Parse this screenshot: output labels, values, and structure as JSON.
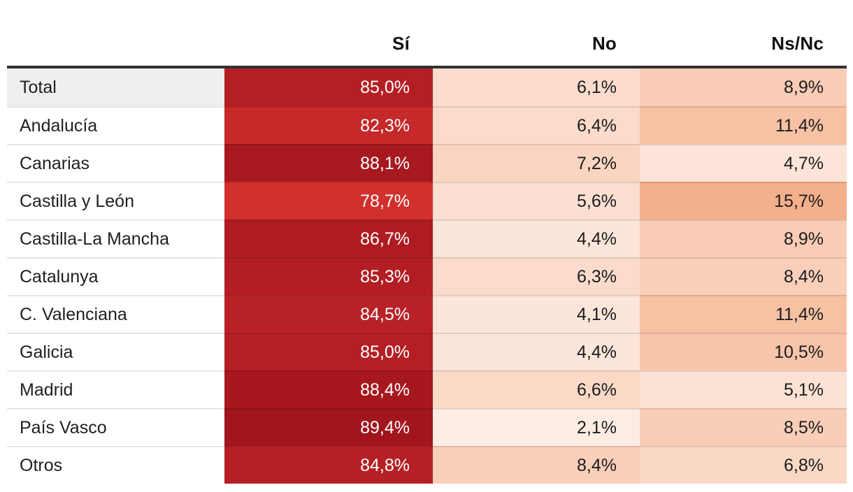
{
  "chart_data": {
    "type": "heatmap",
    "title": "",
    "columns": [
      "Sí",
      "No",
      "Ns/Nc"
    ],
    "categories": [
      "Total",
      "Andalucía",
      "Canarias",
      "Castilla y León",
      "Castilla-La Mancha",
      "Catalunya",
      "C. Valenciana",
      "Galicia",
      "Madrid",
      "País Vasco",
      "Otros"
    ],
    "series": [
      {
        "name": "Sí",
        "values": [
          85.0,
          82.3,
          88.1,
          78.7,
          86.7,
          85.3,
          84.5,
          85.0,
          88.4,
          89.4,
          84.8
        ]
      },
      {
        "name": "No",
        "values": [
          6.1,
          6.4,
          7.2,
          5.6,
          4.4,
          6.3,
          4.1,
          4.4,
          6.6,
          2.1,
          8.4
        ]
      },
      {
        "name": "Ns/Nc",
        "values": [
          8.9,
          11.4,
          4.7,
          15.7,
          8.9,
          8.4,
          11.4,
          10.5,
          5.1,
          8.5,
          6.8
        ]
      }
    ],
    "value_suffix": "%",
    "decimal_separator": ",",
    "highlighted_row": "Total",
    "legend_position": "none",
    "palette": {
      "heat_max_red": "#a1151d",
      "heat_min_peach": "#fdece3",
      "header_rule": "#303030",
      "total_row_bg": "#efefef",
      "row_separator": "rgba(0,0,0,0.10)"
    }
  },
  "table": {
    "columns": [
      "Sí",
      "No",
      "Ns/Nc"
    ],
    "rows": [
      {
        "label": "Total",
        "label_bg": "#efefef",
        "cells": [
          {
            "text": "85,0%",
            "bg": "#b41f24"
          },
          {
            "text": "6,1%",
            "bg": "#fbdccd"
          },
          {
            "text": "8,9%",
            "bg": "#f9ccb5"
          }
        ]
      },
      {
        "label": "Andalucía",
        "label_bg": "#ffffff",
        "cells": [
          {
            "text": "82,3%",
            "bg": "#c52929"
          },
          {
            "text": "6,4%",
            "bg": "#fbdbca"
          },
          {
            "text": "11,4%",
            "bg": "#f7c1a4"
          }
        ]
      },
      {
        "label": "Canarias",
        "label_bg": "#ffffff",
        "cells": [
          {
            "text": "88,1%",
            "bg": "#a7181f"
          },
          {
            "text": "7,2%",
            "bg": "#fad5c1"
          },
          {
            "text": "4,7%",
            "bg": "#fce4d8"
          }
        ]
      },
      {
        "label": "Castilla y León",
        "label_bg": "#ffffff",
        "cells": [
          {
            "text": "78,7%",
            "bg": "#d1302c"
          },
          {
            "text": "5,6%",
            "bg": "#fbdfd1"
          },
          {
            "text": "15,7%",
            "bg": "#f4af8b"
          }
        ]
      },
      {
        "label": "Castilla-La Mancha",
        "label_bg": "#ffffff",
        "cells": [
          {
            "text": "86,7%",
            "bg": "#ae1b21"
          },
          {
            "text": "4,4%",
            "bg": "#fce5d9"
          },
          {
            "text": "8,9%",
            "bg": "#f9ccb5"
          }
        ]
      },
      {
        "label": "Catalunya",
        "label_bg": "#ffffff",
        "cells": [
          {
            "text": "85,3%",
            "bg": "#b21e23"
          },
          {
            "text": "6,3%",
            "bg": "#fbdbcb"
          },
          {
            "text": "8,4%",
            "bg": "#f9cfba"
          }
        ]
      },
      {
        "label": "C. Valenciana",
        "label_bg": "#ffffff",
        "cells": [
          {
            "text": "84,5%",
            "bg": "#b82226"
          },
          {
            "text": "4,1%",
            "bg": "#fce6db"
          },
          {
            "text": "11,4%",
            "bg": "#f7c1a4"
          }
        ]
      },
      {
        "label": "Galicia",
        "label_bg": "#ffffff",
        "cells": [
          {
            "text": "85,0%",
            "bg": "#b41f24"
          },
          {
            "text": "4,4%",
            "bg": "#fce5d9"
          },
          {
            "text": "10,5%",
            "bg": "#f8c5ab"
          }
        ]
      },
      {
        "label": "Madrid",
        "label_bg": "#ffffff",
        "cells": [
          {
            "text": "88,4%",
            "bg": "#a6171e"
          },
          {
            "text": "6,6%",
            "bg": "#fbd9c7"
          },
          {
            "text": "5,1%",
            "bg": "#fce2d5"
          }
        ]
      },
      {
        "label": "País Vasco",
        "label_bg": "#ffffff",
        "cells": [
          {
            "text": "89,4%",
            "bg": "#a1151d"
          },
          {
            "text": "2,1%",
            "bg": "#fdece3"
          },
          {
            "text": "8,5%",
            "bg": "#f9ceb9"
          }
        ]
      },
      {
        "label": "Otros",
        "label_bg": "#ffffff",
        "cells": [
          {
            "text": "84,8%",
            "bg": "#b62025"
          },
          {
            "text": "8,4%",
            "bg": "#f9cfba"
          },
          {
            "text": "6,8%",
            "bg": "#fbd8c6"
          }
        ]
      }
    ]
  }
}
